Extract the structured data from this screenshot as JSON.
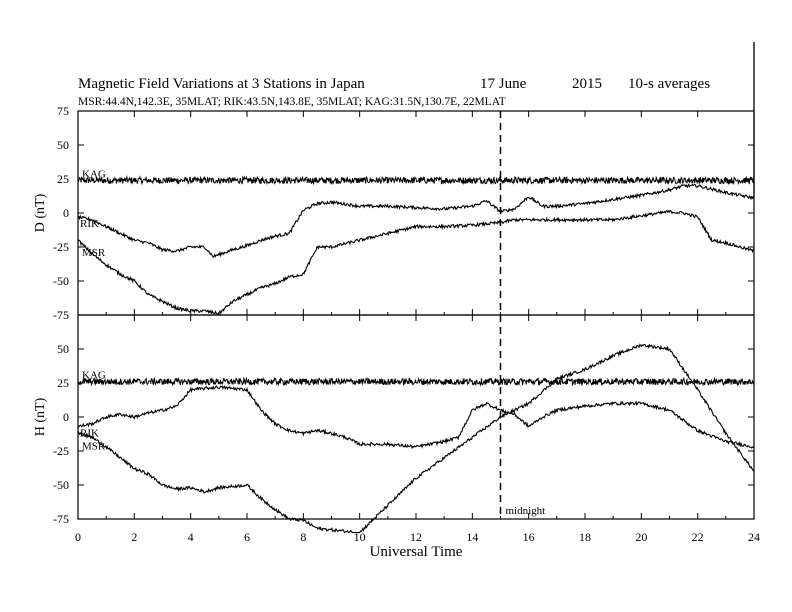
{
  "chart_data": {
    "type": "line",
    "title": "Magnetic Field Variations at 3 Stations in Japan",
    "date": "17 June",
    "year": "2015",
    "averaging": "10-s averages",
    "subtitle": "MSR:44.4N,142.3E, 35MLAT;  RIK:43.5N,143.8E, 35MLAT;  KAG:31.5N,130.7E, 22MLAT",
    "xlabel": "Universal Time",
    "xlim": [
      0,
      24
    ],
    "xticks": [
      "0",
      "2",
      "4",
      "6",
      "8",
      "10",
      "12",
      "14",
      "16",
      "18",
      "20",
      "22",
      "24"
    ],
    "annotation": "midnight",
    "midnight_ut": 15,
    "panels": [
      {
        "ylabel": "D (nT)",
        "ylim": [
          -75,
          75
        ],
        "yticks": [
          "75",
          "50",
          "25",
          "0",
          "-25",
          "-50",
          "-75"
        ],
        "series": [
          {
            "name": "KAG",
            "x": [
              0,
              2,
              4,
              6,
              8,
              10,
              12,
              14,
              16,
              18,
              20,
              22,
              24
            ],
            "y": [
              24,
              24,
              24,
              24,
              24,
              24,
              24,
              24,
              24,
              24,
              24,
              24,
              24
            ]
          },
          {
            "name": "RIK",
            "x": [
              0,
              0.5,
              1,
              1.5,
              2,
              2.5,
              3,
              3.5,
              4,
              4.5,
              4.8,
              5.5,
              6,
              6.5,
              7,
              7.5,
              8,
              8.5,
              9,
              10,
              11,
              12,
              13,
              14,
              14.5,
              15,
              15.5,
              16,
              16.5,
              17,
              18,
              19,
              20,
              21,
              21.5,
              22,
              23,
              24
            ],
            "y": [
              -3,
              -5,
              -10,
              -15,
              -20,
              -22,
              -27,
              -28,
              -25,
              -25,
              -32,
              -27,
              -24,
              -20,
              -17,
              -15,
              2,
              7,
              8,
              5,
              5,
              4,
              3,
              5,
              9,
              1,
              3,
              12,
              5,
              5,
              7,
              10,
              13,
              17,
              20,
              20,
              15,
              11
            ]
          },
          {
            "name": "MSR",
            "x": [
              0,
              0.5,
              1,
              1.5,
              2,
              2.5,
              3,
              3.5,
              4,
              4.5,
              5,
              5.5,
              6,
              6.5,
              7,
              7.5,
              8,
              8.5,
              9,
              10,
              11,
              12,
              13,
              14,
              15,
              15.5,
              16,
              17,
              18,
              19,
              20,
              21,
              21.5,
              22,
              22.5,
              23,
              24
            ],
            "y": [
              -20,
              -30,
              -38,
              -45,
              -50,
              -60,
              -65,
              -70,
              -72,
              -72,
              -74,
              -65,
              -60,
              -55,
              -52,
              -47,
              -45,
              -25,
              -25,
              -20,
              -15,
              -10,
              -10,
              -9,
              -7,
              -5,
              -5,
              -5,
              -5,
              -5,
              -2,
              1,
              0,
              -3,
              -20,
              -22,
              -28
            ]
          }
        ]
      },
      {
        "ylabel": "H (nT)",
        "ylim": [
          -75,
          75
        ],
        "yticks": [
          "75",
          "50",
          "25",
          "0",
          "-25",
          "-50",
          "-75"
        ],
        "series": [
          {
            "name": "KAG",
            "x": [
              0,
              2,
              4,
              6,
              8,
              10,
              12,
              14,
              16,
              18,
              20,
              22,
              24
            ],
            "y": [
              26,
              26,
              26,
              26,
              26,
              26,
              26,
              26,
              26,
              26,
              26,
              26,
              26
            ]
          },
          {
            "name": "RIK",
            "x": [
              0,
              0.5,
              1,
              1.5,
              2,
              2.5,
              3,
              3.5,
              4,
              5,
              6,
              6.5,
              7,
              7.5,
              8,
              8.5,
              9,
              9.5,
              10,
              11,
              12,
              13,
              13.5,
              14,
              14.5,
              15,
              15.5,
              16,
              16.5,
              17,
              18,
              19,
              20,
              21,
              22,
              23,
              24
            ],
            "y": [
              -7,
              -5,
              0,
              2,
              0,
              3,
              5,
              8,
              20,
              22,
              20,
              5,
              -5,
              -10,
              -12,
              -10,
              -12,
              -15,
              -20,
              -20,
              -22,
              -18,
              -15,
              5,
              10,
              5,
              2,
              -7,
              0,
              5,
              8,
              10,
              10,
              5,
              -10,
              -18,
              -22
            ]
          },
          {
            "name": "MSR",
            "x": [
              0,
              0.5,
              1,
              1.5,
              2,
              2.5,
              3,
              3.5,
              4,
              4.5,
              5,
              6,
              6.5,
              7,
              7.5,
              8,
              8.5,
              9,
              10,
              10.5,
              11,
              12,
              13,
              14,
              15,
              16,
              17,
              18,
              19,
              20,
              21,
              22,
              23,
              24
            ],
            "y": [
              -12,
              -15,
              -22,
              -30,
              -38,
              -42,
              -50,
              -53,
              -52,
              -55,
              -52,
              -50,
              -60,
              -68,
              -75,
              -76,
              -82,
              -83,
              -85,
              -75,
              -65,
              -45,
              -30,
              -15,
              0,
              10,
              28,
              35,
              45,
              53,
              50,
              20,
              -12,
              -40
            ]
          }
        ]
      }
    ]
  }
}
